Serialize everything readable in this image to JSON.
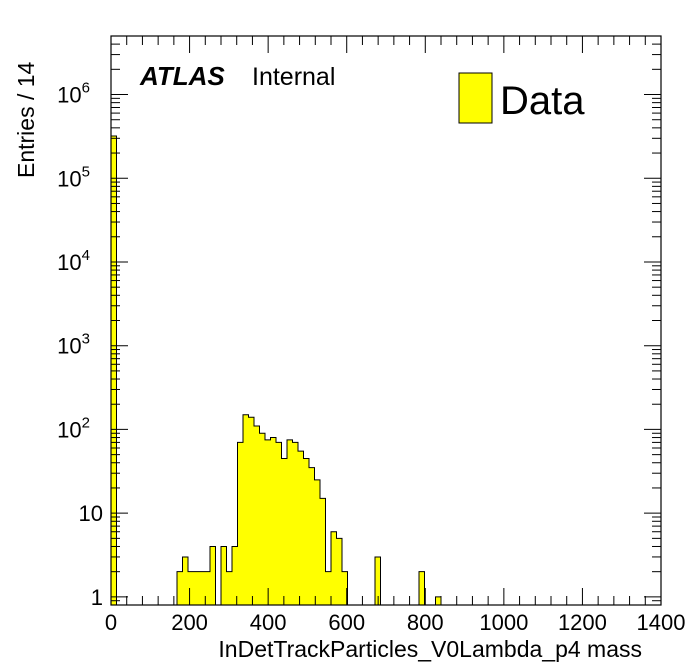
{
  "chart_data": {
    "type": "bar",
    "histogram": true,
    "xlabel": "InDetTrackParticles_V0Lambda_p4 mass",
    "ylabel": "Entries / 14",
    "xlim": [
      0,
      1400
    ],
    "ylim": [
      0.8,
      5000000
    ],
    "yscale": "log",
    "grid": false,
    "legend_position": "top-right",
    "fill_color": "#ffff00",
    "line_color": "#000000",
    "atlas_label": "ATLAS",
    "atlas_status": "Internal",
    "x_ticks": [
      "0",
      "200",
      "400",
      "600",
      "800",
      "1000",
      "1200",
      "1400"
    ],
    "y_ticks": [
      {
        "value": 1,
        "base": "1",
        "exp": ""
      },
      {
        "value": 10,
        "base": "10",
        "exp": ""
      },
      {
        "value": 100,
        "base": "10",
        "exp": "2"
      },
      {
        "value": 1000,
        "base": "10",
        "exp": "3"
      },
      {
        "value": 10000,
        "base": "10",
        "exp": "4"
      },
      {
        "value": 100000,
        "base": "10",
        "exp": "5"
      },
      {
        "value": 1000000,
        "base": "10",
        "exp": "6"
      }
    ],
    "series": [
      {
        "name": "Data",
        "bin_width": 14,
        "bins": [
          {
            "x": 0,
            "y": 320000
          },
          {
            "x": 168,
            "y": 2
          },
          {
            "x": 182,
            "y": 3
          },
          {
            "x": 196,
            "y": 2
          },
          {
            "x": 210,
            "y": 2
          },
          {
            "x": 224,
            "y": 2
          },
          {
            "x": 238,
            "y": 2
          },
          {
            "x": 252,
            "y": 4
          },
          {
            "x": 280,
            "y": 4
          },
          {
            "x": 294,
            "y": 2
          },
          {
            "x": 308,
            "y": 4
          },
          {
            "x": 322,
            "y": 70
          },
          {
            "x": 336,
            "y": 150
          },
          {
            "x": 350,
            "y": 140
          },
          {
            "x": 364,
            "y": 110
          },
          {
            "x": 378,
            "y": 90
          },
          {
            "x": 392,
            "y": 75
          },
          {
            "x": 406,
            "y": 80
          },
          {
            "x": 420,
            "y": 70
          },
          {
            "x": 434,
            "y": 45
          },
          {
            "x": 448,
            "y": 75
          },
          {
            "x": 462,
            "y": 70
          },
          {
            "x": 476,
            "y": 55
          },
          {
            "x": 490,
            "y": 45
          },
          {
            "x": 504,
            "y": 35
          },
          {
            "x": 518,
            "y": 25
          },
          {
            "x": 532,
            "y": 15
          },
          {
            "x": 546,
            "y": 2
          },
          {
            "x": 560,
            "y": 6
          },
          {
            "x": 574,
            "y": 5
          },
          {
            "x": 588,
            "y": 2
          },
          {
            "x": 672,
            "y": 3
          },
          {
            "x": 784,
            "y": 2
          },
          {
            "x": 826,
            "y": 1
          }
        ]
      }
    ]
  }
}
